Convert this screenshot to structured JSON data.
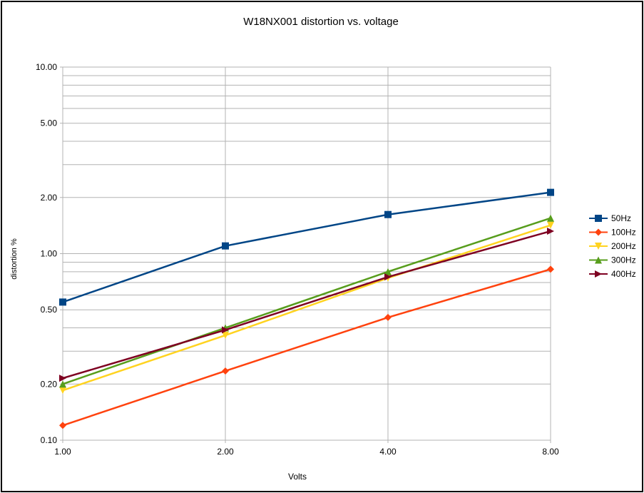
{
  "chart_data": {
    "type": "line",
    "title": "W18NX001 distortion vs. voltage",
    "xlabel": "Volts",
    "ylabel": "distortion %",
    "x_scale": "log2",
    "y_scale": "log",
    "xlim": [
      1,
      8
    ],
    "ylim": [
      0.1,
      10
    ],
    "x": [
      1,
      2,
      4,
      8
    ],
    "x_tick_labels": [
      "1.00",
      "2.00",
      "4.00",
      "8.00"
    ],
    "y_ticks": [
      0.1,
      0.2,
      0.5,
      1,
      2,
      5,
      10
    ],
    "y_tick_labels": [
      "0.10",
      "0.20",
      "0.50",
      "1.00",
      "2.00",
      "5.00",
      "10.00"
    ],
    "grid": true,
    "legend_position": "right",
    "series": [
      {
        "name": "50Hz",
        "color": "#004586",
        "marker": "square",
        "values": [
          0.55,
          1.1,
          1.62,
          2.13
        ]
      },
      {
        "name": "100Hz",
        "color": "#ff420e",
        "marker": "diamond",
        "values": [
          0.12,
          0.235,
          0.455,
          0.825
        ]
      },
      {
        "name": "200Hz",
        "color": "#ffd320",
        "marker": "triangle-down",
        "values": [
          0.185,
          0.365,
          0.74,
          1.42
        ]
      },
      {
        "name": "300Hz",
        "color": "#579d1c",
        "marker": "triangle-up",
        "values": [
          0.2,
          0.4,
          0.8,
          1.55
        ]
      },
      {
        "name": "400Hz",
        "color": "#7e0021",
        "marker": "triangle-right",
        "values": [
          0.215,
          0.39,
          0.75,
          1.32
        ]
      }
    ]
  }
}
